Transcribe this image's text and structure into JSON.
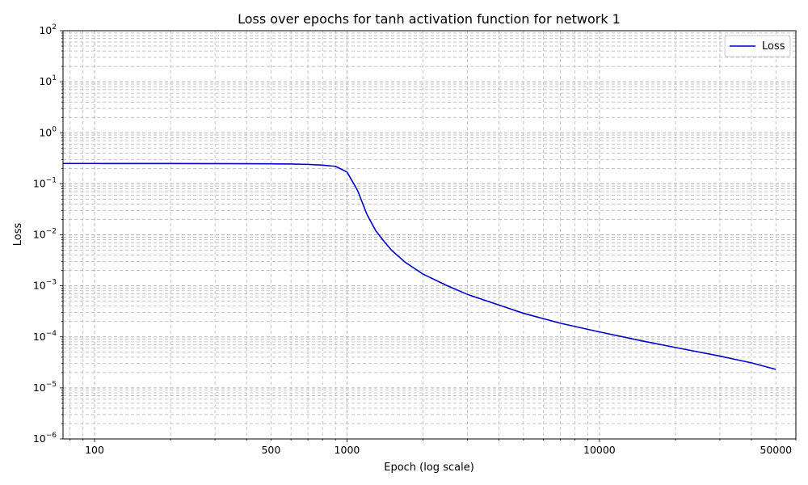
{
  "chart_data": {
    "type": "line",
    "title": "Loss over epochs for tanh activation function for network 1",
    "xlabel": "Epoch (log scale)",
    "ylabel": "Loss",
    "x_scale": "log",
    "y_scale": "log",
    "xlim": [
      75,
      60000
    ],
    "ylim": [
      1e-06,
      100
    ],
    "x_ticks": [
      {
        "value": 100,
        "label": "100"
      },
      {
        "value": 500,
        "label": "500"
      },
      {
        "value": 1000,
        "label": "1000"
      },
      {
        "value": 10000,
        "label": "10000"
      },
      {
        "value": 50000,
        "label": "50000"
      }
    ],
    "y_ticks": [
      {
        "value": 1e-06,
        "base": "10",
        "exp": "−6"
      },
      {
        "value": 1e-05,
        "base": "10",
        "exp": "−5"
      },
      {
        "value": 0.0001,
        "base": "10",
        "exp": "−4"
      },
      {
        "value": 0.001,
        "base": "10",
        "exp": "−3"
      },
      {
        "value": 0.01,
        "base": "10",
        "exp": "−2"
      },
      {
        "value": 0.1,
        "base": "10",
        "exp": "−1"
      },
      {
        "value": 1,
        "base": "10",
        "exp": "0"
      },
      {
        "value": 10,
        "base": "10",
        "exp": "1"
      },
      {
        "value": 100,
        "base": "10",
        "exp": "2"
      }
    ],
    "grid": true,
    "legend_position": "top-right",
    "series": [
      {
        "name": "Loss",
        "color": "#0000cc",
        "x": [
          75,
          100,
          200,
          300,
          400,
          500,
          600,
          700,
          800,
          900,
          1000,
          1100,
          1200,
          1300,
          1400,
          1500,
          1700,
          2000,
          2500,
          3000,
          4000,
          5000,
          7000,
          10000,
          15000,
          20000,
          30000,
          40000,
          50000
        ],
        "y": [
          0.25,
          0.25,
          0.249,
          0.248,
          0.247,
          0.246,
          0.244,
          0.24,
          0.232,
          0.22,
          0.17,
          0.075,
          0.025,
          0.012,
          0.0075,
          0.005,
          0.0029,
          0.0017,
          0.001,
          0.00068,
          0.00042,
          0.00029,
          0.000185,
          0.000125,
          8.2e-05,
          6.2e-05,
          4.2e-05,
          3.1e-05,
          2.3e-05
        ]
      }
    ]
  }
}
